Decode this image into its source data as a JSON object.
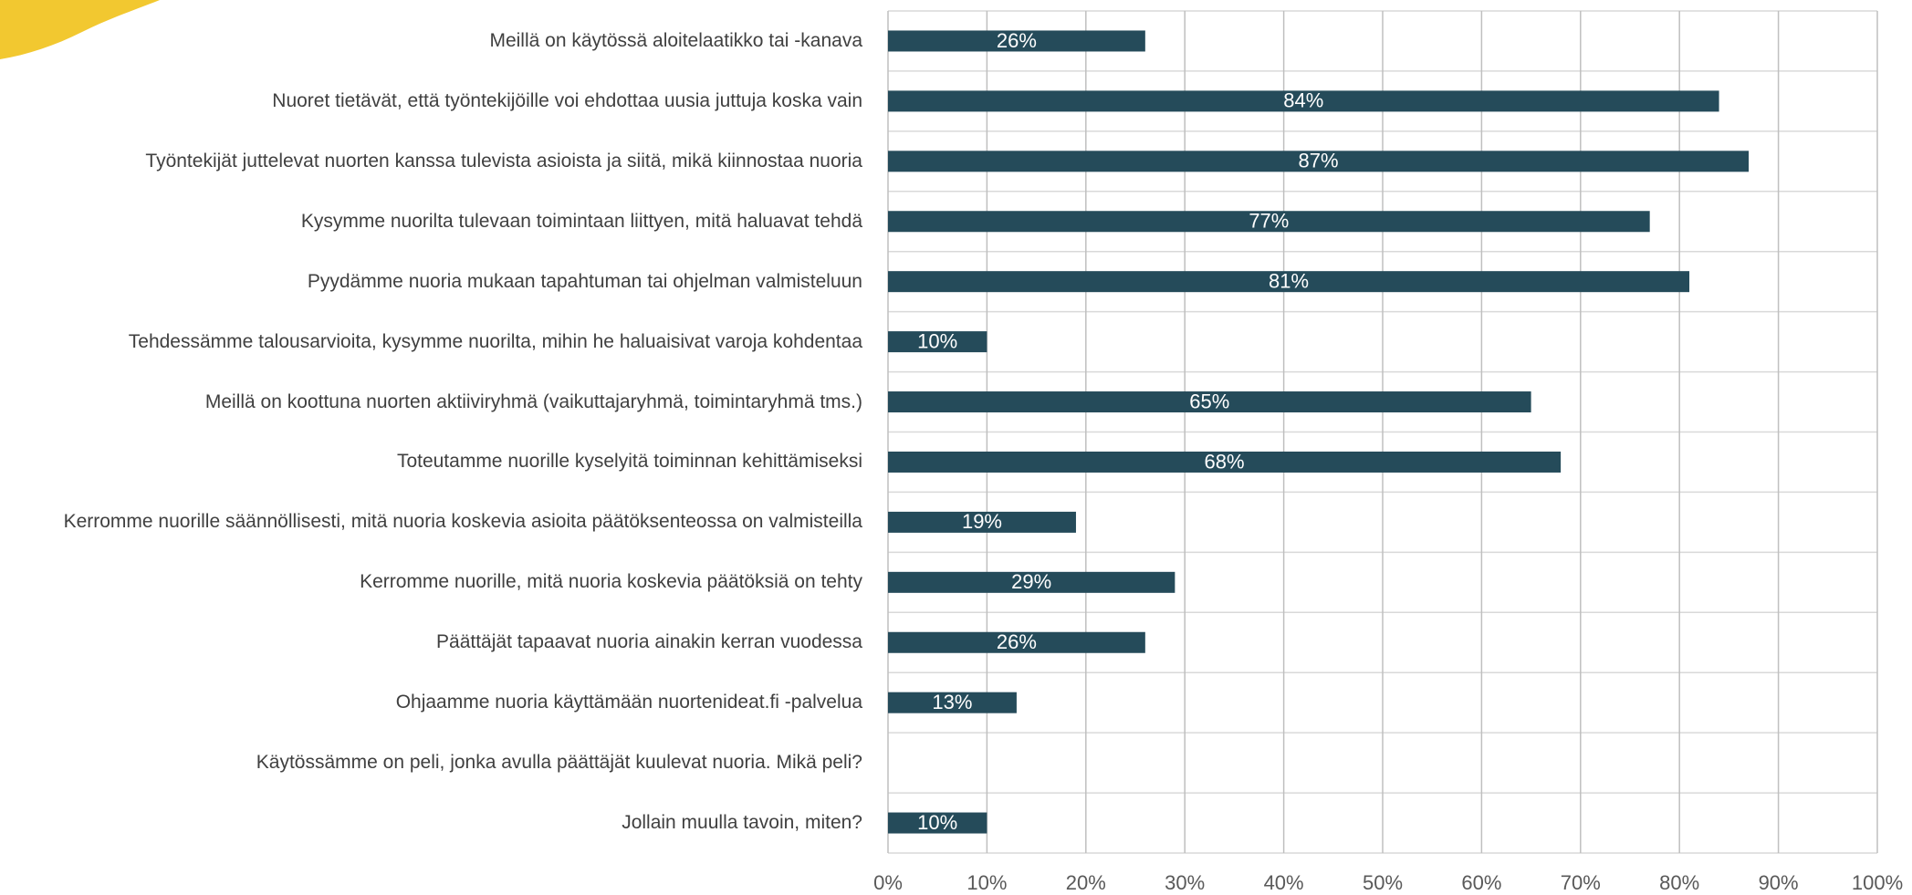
{
  "chart_data": {
    "type": "bar",
    "orientation": "horizontal",
    "categories": [
      "Meillä on käytössä aloitelaatikko tai -kanava",
      "Nuoret tietävät, että työntekijöille voi ehdottaa uusia juttuja koska vain",
      "Työntekijät juttelevat nuorten kanssa tulevista asioista ja siitä, mikä kiinnostaa nuoria",
      "Kysymme nuorilta tulevaan toimintaan liittyen, mitä haluavat tehdä",
      "Pyydämme nuoria mukaan tapahtuman tai ohjelman valmisteluun",
      "Tehdessämme talousarvioita, kysymme nuorilta, mihin he haluaisivat varoja kohdentaa",
      "Meillä on koottuna nuorten aktiiviryhmä (vaikuttajaryhmä, toimintaryhmä tms.)",
      "Toteutamme nuorille kyselyitä toiminnan kehittämiseksi",
      "Kerromme nuorille säännöllisesti, mitä nuoria koskevia asioita päätöksenteossa on valmisteilla",
      "Kerromme nuorille, mitä nuoria koskevia päätöksiä on tehty",
      "Päättäjät tapaavat nuoria ainakin kerran vuodessa",
      "Ohjaamme nuoria käyttämään nuortenideat.fi -palvelua",
      "Käytössämme on peli, jonka avulla päättäjät kuulevat nuoria. Mikä peli?",
      "Jollain muulla tavoin, miten?"
    ],
    "values": [
      26,
      84,
      87,
      77,
      81,
      10,
      65,
      68,
      19,
      29,
      26,
      13,
      null,
      10
    ],
    "value_labels": [
      "26%",
      "84%",
      "87%",
      "77%",
      "81%",
      "10%",
      "65%",
      "68%",
      "19%",
      "29%",
      "26%",
      "13%",
      null,
      "10%"
    ],
    "color": "#254b5a",
    "xlim": [
      0,
      100
    ],
    "xticks": [
      {
        "value": 0,
        "label": "0%"
      },
      {
        "value": 10,
        "label": "10%"
      },
      {
        "value": 20,
        "label": "20%"
      },
      {
        "value": 30,
        "label": "30%"
      },
      {
        "value": 40,
        "label": "40%"
      },
      {
        "value": 50,
        "label": "50%"
      },
      {
        "value": 60,
        "label": "60%"
      },
      {
        "value": 70,
        "label": "70%"
      },
      {
        "value": 80,
        "label": "80%"
      },
      {
        "value": 90,
        "label": "90%"
      },
      {
        "value": 100,
        "label": "100%"
      }
    ],
    "grid": true
  }
}
